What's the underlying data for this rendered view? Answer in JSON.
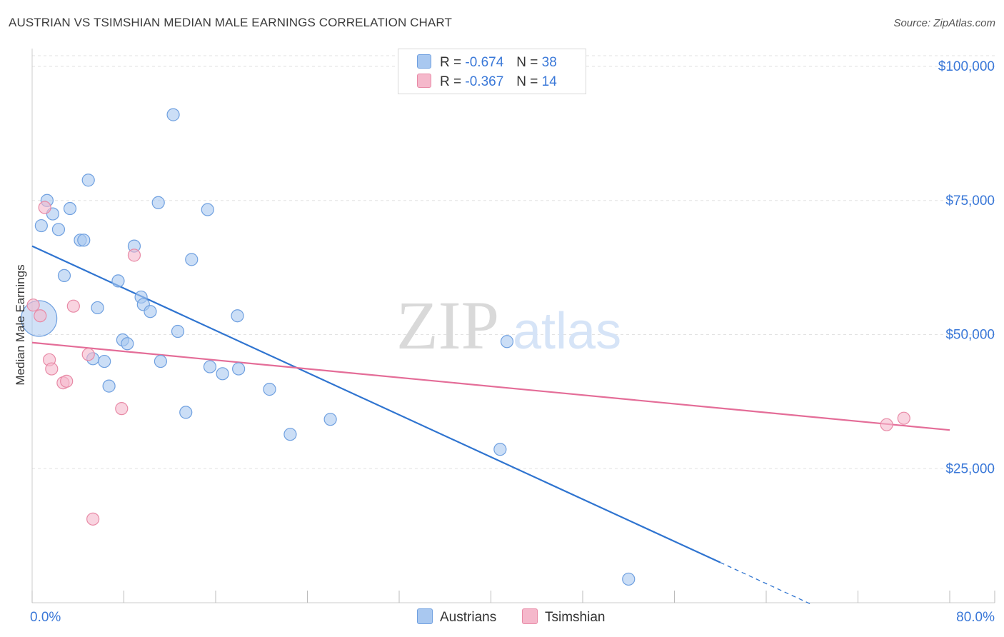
{
  "title": "AUSTRIAN VS TSIMSHIAN MEDIAN MALE EARNINGS CORRELATION CHART",
  "source": "Source: ZipAtlas.com",
  "watermark": {
    "zip": "ZIP",
    "atlas": "atlas"
  },
  "legend": {
    "rows": [
      {
        "r_label": "R =",
        "r_value": "-0.674",
        "n_label": "N =",
        "n_value": "38",
        "color": "#a9c8f0"
      },
      {
        "r_label": "R =",
        "r_value": "-0.367",
        "n_label": "N =",
        "n_value": "14",
        "color": "#f5b8cb"
      }
    ]
  },
  "bottom_legend": [
    {
      "label": "Austrians",
      "color": "#a9c8f0"
    },
    {
      "label": "Tsimshian",
      "color": "#f5b8cb"
    }
  ],
  "chart_data": {
    "type": "scatter",
    "title": "AUSTRIAN VS TSIMSHIAN MEDIAN MALE EARNINGS CORRELATION CHART",
    "xlabel": "",
    "ylabel": "Median Male Earnings",
    "xlim": [
      0,
      80
    ],
    "ylim": [
      0,
      102000
    ],
    "x_tick_labels": [
      "0.0%",
      "80.0%"
    ],
    "y_ticks": [
      25000,
      50000,
      75000,
      100000
    ],
    "y_tick_labels": [
      "$25,000",
      "$50,000",
      "$75,000",
      "$100,000"
    ],
    "grid": true,
    "series": [
      {
        "name": "Austrians",
        "color": "#a9c8f0",
        "stroke": "#6fa0e0",
        "line_color": "#2f74d0",
        "trend": {
          "x0": 0,
          "y0": 66500,
          "x1": 60,
          "y1": 7500,
          "dash_to_x": 68
        },
        "points": [
          [
            0.6,
            53000,
            1
          ],
          [
            1.3,
            75000,
            0
          ],
          [
            0.8,
            70300,
            0
          ],
          [
            1.8,
            72500,
            0
          ],
          [
            2.3,
            69600,
            0
          ],
          [
            3.3,
            73500,
            0
          ],
          [
            2.8,
            61000,
            0
          ],
          [
            4.2,
            67600,
            0
          ],
          [
            4.5,
            67600,
            0
          ],
          [
            4.9,
            78800,
            0
          ],
          [
            5.7,
            55000,
            0
          ],
          [
            5.3,
            45500,
            0
          ],
          [
            6.3,
            45000,
            0
          ],
          [
            6.7,
            40400,
            0
          ],
          [
            7.5,
            60000,
            0
          ],
          [
            7.9,
            49000,
            0
          ],
          [
            8.3,
            48300,
            0
          ],
          [
            8.9,
            66500,
            0
          ],
          [
            9.5,
            57000,
            0
          ],
          [
            9.7,
            55600,
            0
          ],
          [
            10.3,
            54300,
            0
          ],
          [
            11.0,
            74600,
            0
          ],
          [
            11.2,
            45000,
            0
          ],
          [
            12.3,
            91000,
            0
          ],
          [
            12.7,
            50600,
            0
          ],
          [
            13.4,
            35500,
            0
          ],
          [
            13.9,
            64000,
            0
          ],
          [
            15.3,
            73300,
            0
          ],
          [
            15.5,
            44000,
            0
          ],
          [
            16.6,
            42700,
            0
          ],
          [
            18.0,
            43600,
            0
          ],
          [
            17.9,
            53500,
            0
          ],
          [
            20.7,
            39800,
            0
          ],
          [
            22.5,
            31400,
            0
          ],
          [
            26.0,
            34200,
            0
          ],
          [
            41.4,
            48700,
            0
          ],
          [
            40.8,
            28600,
            0
          ],
          [
            52.0,
            4400,
            0
          ]
        ]
      },
      {
        "name": "Tsimshian",
        "color": "#f5b8cb",
        "stroke": "#e88aa6",
        "line_color": "#e46d98",
        "trend": {
          "x0": 0,
          "y0": 48500,
          "x1": 80,
          "y1": 32200
        },
        "points": [
          [
            0.1,
            55500,
            0
          ],
          [
            0.7,
            53500,
            0
          ],
          [
            1.1,
            73700,
            0
          ],
          [
            1.5,
            45300,
            0
          ],
          [
            1.7,
            43600,
            0
          ],
          [
            2.7,
            41000,
            0
          ],
          [
            3.0,
            41300,
            0
          ],
          [
            3.6,
            55300,
            0
          ],
          [
            4.9,
            46300,
            0
          ],
          [
            5.3,
            15600,
            0
          ],
          [
            7.8,
            36200,
            0
          ],
          [
            8.9,
            64800,
            0
          ],
          [
            74.5,
            33200,
            0
          ],
          [
            76.0,
            34400,
            0
          ]
        ]
      }
    ]
  }
}
